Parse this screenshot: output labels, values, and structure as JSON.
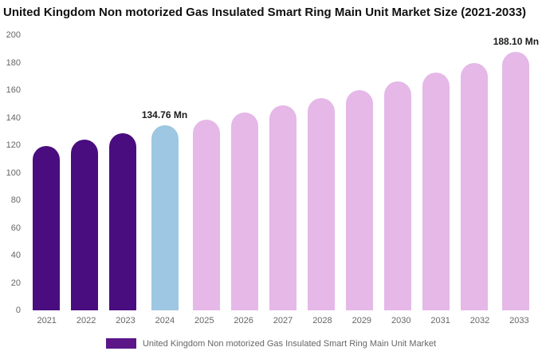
{
  "title": "United Kingdom Non motorized Gas Insulated Smart Ring Main Unit Market Size (2021-2033)",
  "chart_data": {
    "type": "bar",
    "title": "United Kingdom Non motorized Gas Insulated Smart Ring Main Unit Market Size (2021-2033)",
    "categories": [
      "2021",
      "2022",
      "2023",
      "2024",
      "2025",
      "2026",
      "2027",
      "2028",
      "2029",
      "2030",
      "2031",
      "2032",
      "2033"
    ],
    "values": [
      119.5,
      124,
      128.5,
      134.76,
      138.5,
      143.5,
      149,
      154.5,
      160,
      166.5,
      173,
      180,
      188.1
    ],
    "unit": "Mn",
    "xlabel": "",
    "ylabel": "",
    "ylim": [
      0,
      200
    ],
    "yticks": [
      0,
      20,
      40,
      60,
      80,
      100,
      120,
      140,
      160,
      180,
      200
    ],
    "grid": false,
    "legend_position": "bottom",
    "bar_roles": [
      "historical",
      "historical",
      "historical",
      "current",
      "forecast",
      "forecast",
      "forecast",
      "forecast",
      "forecast",
      "forecast",
      "forecast",
      "forecast",
      "forecast"
    ],
    "colors": {
      "historical": "#4a0d7f",
      "current": "#9dc7e2",
      "forecast": "#e5b8e8"
    },
    "annotations": [
      {
        "index": 3,
        "category": "2024",
        "text": "134.76 Mn"
      },
      {
        "index": 12,
        "category": "2033",
        "text": "188.10 Mn"
      }
    ]
  },
  "legend": {
    "label": "United Kingdom Non motorized Gas Insulated Smart Ring Main Unit Market",
    "swatch_color": "#5c1688"
  }
}
